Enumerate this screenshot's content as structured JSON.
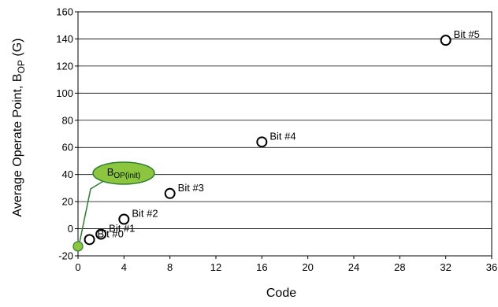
{
  "chart_data": {
    "type": "scatter",
    "title": "",
    "xlabel": "Code",
    "ylabel_parts": {
      "prefix": "Average Operate Point, B",
      "subscript": "OP",
      "suffix": " (G)"
    },
    "xlim": [
      0,
      36
    ],
    "ylim": [
      -20,
      160
    ],
    "xticks": [
      0,
      4,
      8,
      12,
      16,
      20,
      24,
      28,
      32,
      36
    ],
    "yticks": [
      -20,
      0,
      20,
      40,
      60,
      80,
      100,
      120,
      140,
      160
    ],
    "grid": "horizontal",
    "points": [
      {
        "label": "Bit #0",
        "x": 1,
        "y": -8
      },
      {
        "label": "Bit #1",
        "x": 2,
        "y": -4
      },
      {
        "label": "Bit #2",
        "x": 4,
        "y": 7
      },
      {
        "label": "Bit #3",
        "x": 8,
        "y": 26
      },
      {
        "label": "Bit #4",
        "x": 16,
        "y": 64
      },
      {
        "label": "Bit #5",
        "x": 32,
        "y": 139
      }
    ],
    "init_point": {
      "x": 0,
      "y": -13
    },
    "callout": {
      "base": "B",
      "subscript": "OP(init)",
      "fill_color": "#8cc63f",
      "stroke_color": "#2e7d32"
    },
    "marker_style": "open-circle"
  }
}
